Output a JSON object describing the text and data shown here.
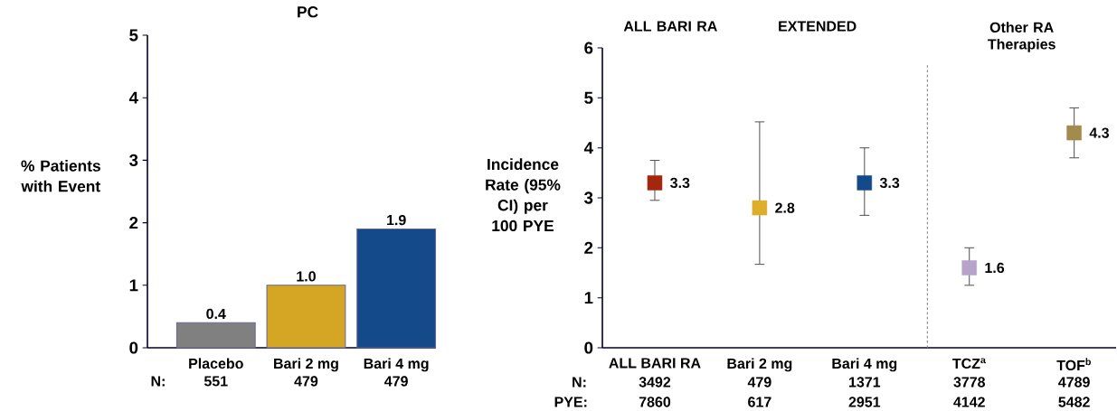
{
  "chart_data": [
    {
      "type": "bar",
      "title": "PC",
      "ylabel": "% Patients with Event",
      "categories": [
        "Placebo",
        "Bari 2 mg",
        "Bari 4 mg"
      ],
      "values": [
        0.4,
        1.0,
        1.9
      ],
      "colors": [
        "#808080",
        "#d4a623",
        "#154a8a"
      ],
      "ylim": [
        0,
        5
      ],
      "yticks": [
        0,
        1,
        2,
        3,
        4,
        5
      ],
      "value_labels": [
        "0.4",
        "1.0",
        "1.9"
      ],
      "annotations": [
        "N:",
        "551",
        "479",
        "479"
      ]
    },
    {
      "type": "scatter",
      "ylabel": "Incidence Rate (95% CI) per 100 PYE",
      "categories": [
        "ALL BARI RA",
        "Bari 2 mg",
        "Bari 4 mg",
        "TCZ$^{a}$",
        "TOF$^{b}$"
      ],
      "values": [
        3.3,
        2.8,
        3.3,
        1.6,
        4.3
      ],
      "colors": [
        "#a3260f",
        "#dcae2a",
        "#154a8a",
        "#b7a3c9",
        "#a38b4e"
      ],
      "errors": [
        [
          2.95,
          3.75
        ],
        [
          1.67,
          4.52
        ],
        [
          2.65,
          4.0
        ],
        [
          1.25,
          2.0
        ],
        [
          3.8,
          4.8
        ]
      ],
      "marker": "square",
      "ylim": [
        0,
        6
      ],
      "yticks": [
        0,
        1,
        2,
        3,
        4,
        5,
        6
      ],
      "data_labels": true,
      "annotations": [
        "ALL BARI RA",
        "EXTENDED",
        "Other RA Therapies",
        "N:",
        "3492",
        "479",
        "1371",
        "3778",
        "4789",
        "PYE:",
        "7860",
        "617",
        "2951",
        "4142",
        "5482"
      ]
    }
  ]
}
